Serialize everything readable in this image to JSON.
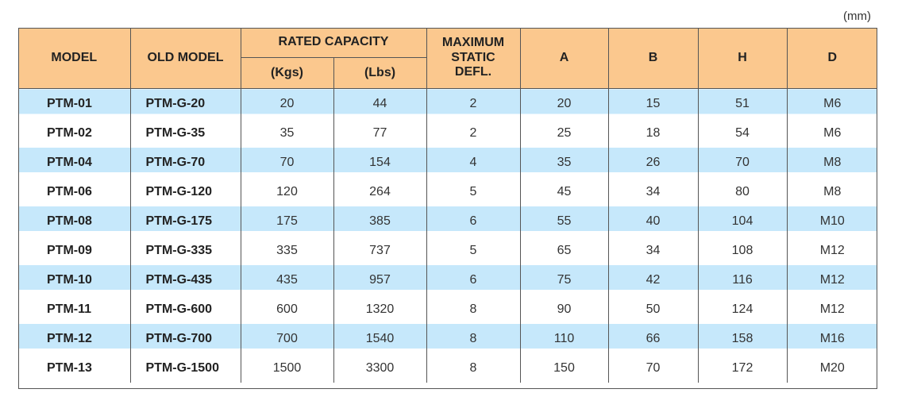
{
  "unit_note": "(mm)",
  "header": {
    "model": "MODEL",
    "old_model": "OLD MODEL",
    "rated_capacity": "RATED CAPACITY",
    "kgs": "(Kgs)",
    "lbs": "(Lbs)",
    "max_defl_line1": "MAXIMUM",
    "max_defl_line2": "STATIC",
    "max_defl_line3": "DEFL.",
    "a": "A",
    "b": "B",
    "h": "H",
    "d": "D"
  },
  "rows": [
    {
      "model": "PTM-01",
      "old_model": "PTM-G-20",
      "kgs": "20",
      "lbs": "44",
      "defl": "2",
      "a": "20",
      "b": "15",
      "h": "51",
      "d": "M6"
    },
    {
      "model": "PTM-02",
      "old_model": "PTM-G-35",
      "kgs": "35",
      "lbs": "77",
      "defl": "2",
      "a": "25",
      "b": "18",
      "h": "54",
      "d": "M6"
    },
    {
      "model": "PTM-04",
      "old_model": "PTM-G-70",
      "kgs": "70",
      "lbs": "154",
      "defl": "4",
      "a": "35",
      "b": "26",
      "h": "70",
      "d": "M8"
    },
    {
      "model": "PTM-06",
      "old_model": "PTM-G-120",
      "kgs": "120",
      "lbs": "264",
      "defl": "5",
      "a": "45",
      "b": "34",
      "h": "80",
      "d": "M8"
    },
    {
      "model": "PTM-08",
      "old_model": "PTM-G-175",
      "kgs": "175",
      "lbs": "385",
      "defl": "6",
      "a": "55",
      "b": "40",
      "h": "104",
      "d": "M10"
    },
    {
      "model": "PTM-09",
      "old_model": "PTM-G-335",
      "kgs": "335",
      "lbs": "737",
      "defl": "5",
      "a": "65",
      "b": "34",
      "h": "108",
      "d": "M12"
    },
    {
      "model": "PTM-10",
      "old_model": "PTM-G-435",
      "kgs": "435",
      "lbs": "957",
      "defl": "6",
      "a": "75",
      "b": "42",
      "h": "116",
      "d": "M12"
    },
    {
      "model": "PTM-11",
      "old_model": "PTM-G-600",
      "kgs": "600",
      "lbs": "1320",
      "defl": "8",
      "a": "90",
      "b": "50",
      "h": "124",
      "d": "M12"
    },
    {
      "model": "PTM-12",
      "old_model": "PTM-G-700",
      "kgs": "700",
      "lbs": "1540",
      "defl": "8",
      "a": "110",
      "b": "66",
      "h": "158",
      "d": "M16"
    },
    {
      "model": "PTM-13",
      "old_model": "PTM-G-1500",
      "kgs": "1500",
      "lbs": "3300",
      "defl": "8",
      "a": "150",
      "b": "70",
      "h": "172",
      "d": "M20"
    }
  ],
  "colors": {
    "header_bg": "#fbc88e",
    "shaded_row_bg": "#c6e8fb",
    "border": "#555555"
  }
}
